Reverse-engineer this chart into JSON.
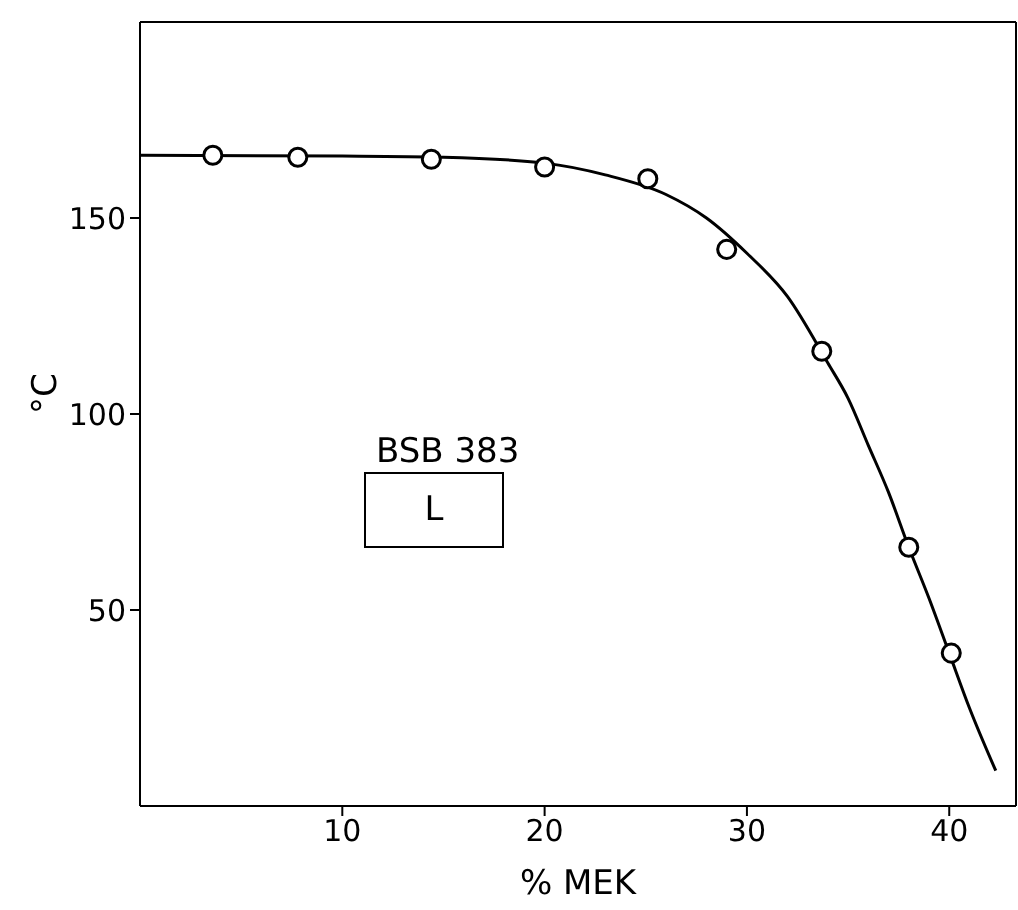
{
  "chart_data": {
    "type": "scatter",
    "xlabel": "% MEK",
    "ylabel": "°C",
    "xlim": [
      0,
      43.3
    ],
    "ylim": [
      0,
      200
    ],
    "xticks": [
      10,
      20,
      30,
      40
    ],
    "yticks": [
      50,
      100,
      150
    ],
    "annotations": [
      "BSB 383",
      "L"
    ],
    "series": [
      {
        "color": "#000000",
        "marker": "circle",
        "x": [
          3.6,
          7.8,
          14.4,
          20.0,
          25.1,
          29.0,
          33.7,
          38.0,
          40.1
        ],
        "values": [
          166,
          165.5,
          165,
          163,
          160,
          142,
          116,
          66,
          39
        ]
      },
      {
        "type": "line",
        "color": "#000000",
        "marker": "none",
        "line_style": "solid",
        "x": [
          0,
          10,
          15,
          20,
          23,
          26,
          28,
          30,
          32,
          34,
          35,
          36,
          37,
          38,
          39,
          40,
          41,
          42.3
        ],
        "values": [
          166,
          165.8,
          165.5,
          164,
          161,
          156,
          150,
          141,
          130,
          113,
          104,
          92,
          80,
          66,
          53,
          39,
          25,
          9
        ]
      }
    ]
  }
}
